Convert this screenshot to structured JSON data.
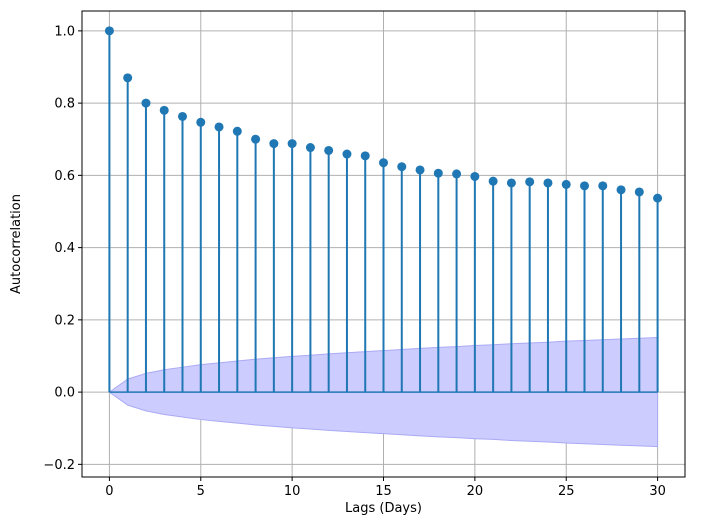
{
  "chart_data": {
    "type": "stem",
    "xlabel": "Lags (Days)",
    "ylabel": "Autocorrelation",
    "xlim": [
      -1.5,
      31.5
    ],
    "ylim": [
      -0.235,
      1.055
    ],
    "xticks": [
      0,
      5,
      10,
      15,
      20,
      25,
      30
    ],
    "xtick_labels": [
      "0",
      "5",
      "10",
      "15",
      "20",
      "25",
      "30"
    ],
    "yticks": [
      -0.2,
      0.0,
      0.2,
      0.4,
      0.6,
      0.8,
      1.0
    ],
    "ytick_labels": [
      "−0.2",
      "0.0",
      "0.2",
      "0.4",
      "0.6",
      "0.8",
      "1.0"
    ],
    "grid": true,
    "series": [
      {
        "x": [
          0,
          1,
          2,
          3,
          4,
          5,
          6,
          7,
          8,
          9,
          10,
          11,
          12,
          13,
          14,
          15,
          16,
          17,
          18,
          19,
          20,
          21,
          22,
          23,
          24,
          25,
          26,
          27,
          28,
          29,
          30
        ],
        "values": [
          1.0,
          0.87,
          0.8,
          0.78,
          0.763,
          0.747,
          0.734,
          0.722,
          0.7,
          0.688,
          0.688,
          0.677,
          0.669,
          0.659,
          0.654,
          0.635,
          0.624,
          0.615,
          0.606,
          0.604,
          0.597,
          0.584,
          0.579,
          0.582,
          0.579,
          0.575,
          0.571,
          0.571,
          0.56,
          0.554,
          0.537
        ]
      }
    ],
    "confidence_band": {
      "x": [
        0,
        1,
        2,
        3,
        4,
        5,
        6,
        7,
        8,
        9,
        10,
        11,
        12,
        13,
        14,
        15,
        16,
        17,
        18,
        19,
        20,
        21,
        22,
        23,
        24,
        25,
        26,
        27,
        28,
        29,
        30
      ],
      "upper": [
        0,
        0.036,
        0.052,
        0.062,
        0.069,
        0.076,
        0.081,
        0.086,
        0.091,
        0.095,
        0.099,
        0.102,
        0.106,
        0.109,
        0.112,
        0.115,
        0.118,
        0.121,
        0.124,
        0.126,
        0.129,
        0.131,
        0.134,
        0.136,
        0.138,
        0.141,
        0.143,
        0.145,
        0.147,
        0.149,
        0.151
      ]
    },
    "colors": {
      "stem": "#1f77b4",
      "band_fill": "#ccccff",
      "band_edge": "#aaaaf5",
      "grid": "#b0b0b0",
      "zero_line": "#1f77b4"
    }
  }
}
